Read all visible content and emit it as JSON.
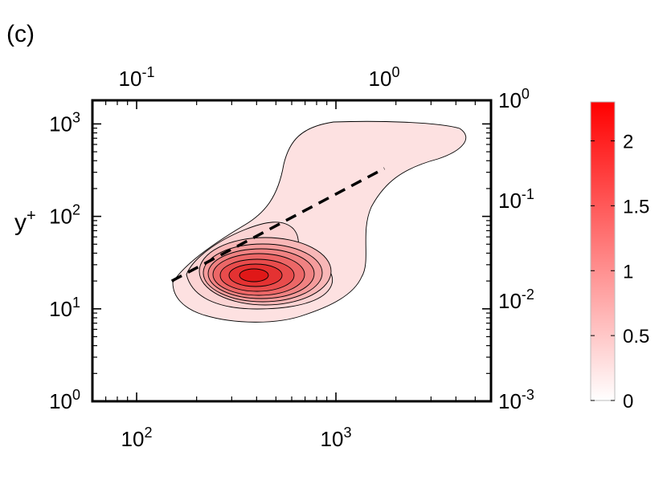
{
  "panel_label": "(c)",
  "ylabel_main": "y",
  "ylabel_sup": "+",
  "chart_data": {
    "type": "heatmap",
    "title": "",
    "bottom_x_axis": {
      "scale": "log",
      "range": [
        60,
        6000
      ],
      "ticks": [
        {
          "base": "10",
          "exp": "2",
          "value": 100
        },
        {
          "base": "10",
          "exp": "3",
          "value": 1000
        }
      ]
    },
    "top_x_axis": {
      "scale": "log",
      "ticks": [
        {
          "base": "10",
          "exp": "-1",
          "value": 0.1
        },
        {
          "base": "10",
          "exp": "0",
          "value": 1
        }
      ]
    },
    "left_y_axis": {
      "label": "y+",
      "scale": "log",
      "range": [
        1,
        1800
      ],
      "ticks": [
        {
          "base": "10",
          "exp": "0",
          "value": 1
        },
        {
          "base": "10",
          "exp": "1",
          "value": 10
        },
        {
          "base": "10",
          "exp": "2",
          "value": 100
        },
        {
          "base": "10",
          "exp": "3",
          "value": 1000
        }
      ]
    },
    "right_y_axis": {
      "scale": "log",
      "ticks": [
        {
          "base": "10",
          "exp": "-3",
          "value": 0.001
        },
        {
          "base": "10",
          "exp": "-2",
          "value": 0.01
        },
        {
          "base": "10",
          "exp": "-1",
          "value": 0.1
        },
        {
          "base": "10",
          "exp": "0",
          "value": 1
        }
      ]
    },
    "colorbar": {
      "range": [
        0,
        2.3
      ],
      "colors": [
        "#ffffff",
        "#ff0000"
      ],
      "ticks": [
        {
          "label": "0",
          "value": 0
        },
        {
          "label": "0.5",
          "value": 0.5
        },
        {
          "label": "1",
          "value": 1
        },
        {
          "label": "1.5",
          "value": 1.5
        },
        {
          "label": "2",
          "value": 2
        }
      ]
    },
    "density_peak": {
      "x": 370,
      "y": 24,
      "value": 2.2
    },
    "dashed_line": {
      "x": [
        150,
        1750
      ],
      "y": [
        20,
        330
      ]
    },
    "contour_fill_colors": [
      "#fde1e1",
      "#fbd3d3",
      "#f8b7b7",
      "#f59c9c",
      "#f08282",
      "#ec6767",
      "#e84c4c",
      "#e43232",
      "#e01818"
    ]
  }
}
